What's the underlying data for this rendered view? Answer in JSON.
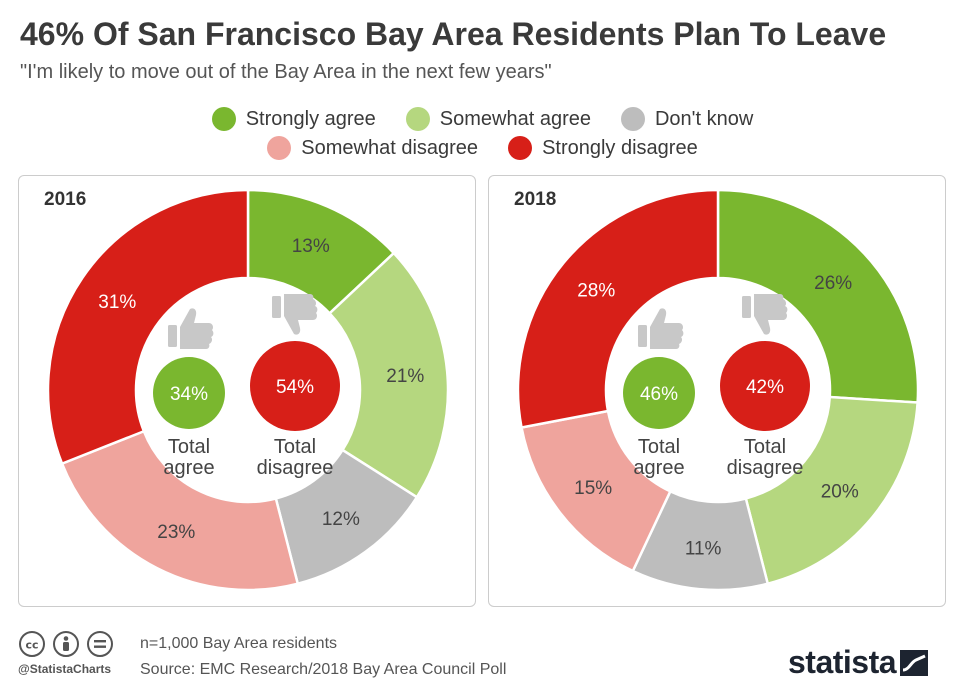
{
  "title": "46% Of San Francisco Bay Area Residents Plan To Leave",
  "subtitle": "\"I'm likely to move out of the Bay Area in the next few years\"",
  "legend": {
    "row1": [
      {
        "label": "Strongly agree",
        "color": "#7ab72f"
      },
      {
        "label": "Somewhat agree",
        "color": "#b5d77f"
      },
      {
        "label": "Don't know",
        "color": "#bdbdbd"
      }
    ],
    "row2": [
      {
        "label": "Somewhat disagree",
        "color": "#efa49d"
      },
      {
        "label": "Strongly disagree",
        "color": "#d71f18"
      }
    ]
  },
  "chart_data": [
    {
      "type": "pie",
      "year": "2016",
      "categories": [
        "Strongly agree",
        "Somewhat agree",
        "Don't know",
        "Somewhat disagree",
        "Strongly disagree"
      ],
      "values": [
        13,
        21,
        12,
        23,
        31
      ],
      "labels": [
        "13%",
        "21%",
        "12%",
        "23%",
        "31%"
      ],
      "colors": [
        "#7ab72f",
        "#b5d77f",
        "#bdbdbd",
        "#efa49d",
        "#d71f18"
      ],
      "total_agree": {
        "value": "34%",
        "label1": "Total",
        "label2": "agree"
      },
      "total_disagree": {
        "value": "54%",
        "label1": "Total",
        "label2": "disagree"
      }
    },
    {
      "type": "pie",
      "year": "2018",
      "categories": [
        "Strongly agree",
        "Somewhat agree",
        "Don't know",
        "Somewhat disagree",
        "Strongly disagree"
      ],
      "values": [
        26,
        20,
        11,
        15,
        28
      ],
      "labels": [
        "26%",
        "20%",
        "11%",
        "15%",
        "28%"
      ],
      "colors": [
        "#7ab72f",
        "#b5d77f",
        "#bdbdbd",
        "#efa49d",
        "#d71f18"
      ],
      "total_agree": {
        "value": "46%",
        "label1": "Total",
        "label2": "agree"
      },
      "total_disagree": {
        "value": "42%",
        "label1": "Total",
        "label2": "disagree"
      }
    }
  ],
  "footer": {
    "note": "n=1,000 Bay Area residents",
    "source": "Source: EMC Research/2018 Bay Area Council Poll",
    "handle": "@StatistaCharts",
    "logo": "statista"
  }
}
